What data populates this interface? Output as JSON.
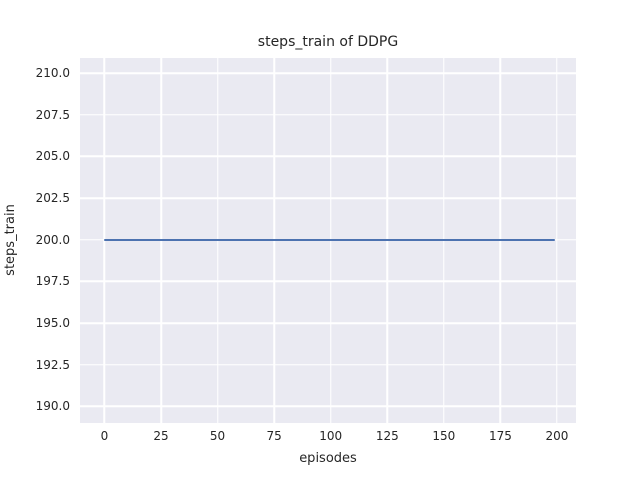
{
  "figure_bg": "#FFFFFF",
  "chart_data": {
    "type": "line",
    "title": "steps_train of DDPG",
    "xlabel": "episodes",
    "ylabel": "steps_train",
    "series": [
      {
        "name": "steps_train",
        "x": [
          0,
          199
        ],
        "y": [
          200,
          200
        ],
        "color": "#4C72B0"
      }
    ],
    "xlim": [
      -10.8,
      208.4
    ],
    "ylim": [
      189.0,
      210.9
    ],
    "x_ticks": [
      0,
      25,
      50,
      75,
      100,
      125,
      150,
      175,
      200
    ],
    "x_tick_labels": [
      "0",
      "25",
      "50",
      "75",
      "100",
      "125",
      "150",
      "175",
      "200"
    ],
    "y_ticks": [
      190,
      192.5,
      195,
      197.5,
      200,
      202.5,
      205,
      207.5,
      210
    ],
    "y_tick_labels": [
      "190.0",
      "192.5",
      "195.0",
      "197.5",
      "200.0",
      "202.5",
      "205.0",
      "207.5",
      "210.0"
    ],
    "grid": true,
    "legend": "none",
    "plot_bg": "#EAEAF2",
    "grid_color": "#FFFFFF",
    "text_color": "#262626"
  }
}
